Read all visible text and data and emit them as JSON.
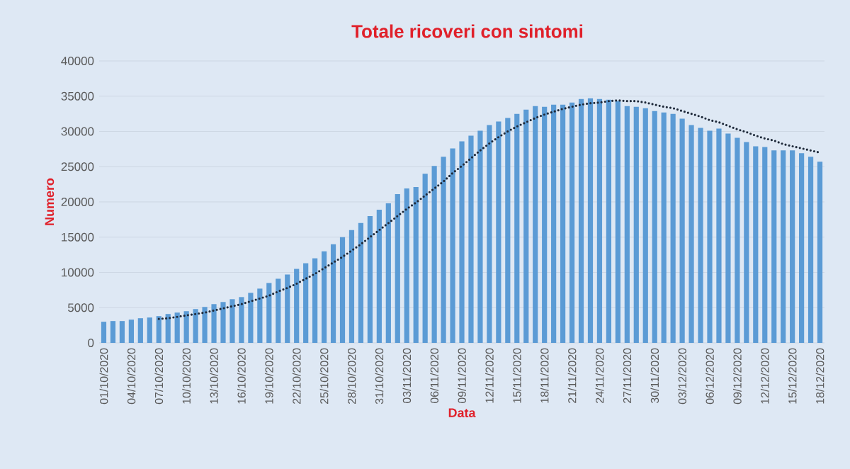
{
  "chart_data": {
    "type": "bar",
    "title": "Totale ricoveri con sintomi",
    "xlabel": "Data",
    "ylabel": "Numero",
    "categories": [
      "01/10/2020",
      null,
      null,
      "04/10/2020",
      null,
      null,
      "07/10/2020",
      null,
      null,
      "10/10/2020",
      null,
      null,
      "13/10/2020",
      null,
      null,
      "16/10/2020",
      null,
      null,
      "19/10/2020",
      null,
      null,
      "22/10/2020",
      null,
      null,
      "25/10/2020",
      null,
      null,
      "28/10/2020",
      null,
      null,
      "31/10/2020",
      null,
      null,
      "03/11/2020",
      null,
      null,
      "06/11/2020",
      null,
      null,
      "09/11/2020",
      null,
      null,
      "12/11/2020",
      null,
      null,
      "15/11/2020",
      null,
      null,
      "18/11/2020",
      null,
      null,
      "21/11/2020",
      null,
      null,
      "24/11/2020",
      null,
      null,
      "27/11/2020",
      null,
      null,
      "30/11/2020",
      null,
      null,
      "03/12/2020",
      null,
      null,
      "06/12/2020",
      null,
      null,
      "09/12/2020",
      null,
      null,
      "12/12/2020",
      null,
      null,
      "15/12/2020",
      null,
      null,
      "18/12/2020"
    ],
    "series": [
      {
        "color": "#5b9bd5",
        "values": [
          3000,
          3100,
          3100,
          3300,
          3500,
          3600,
          3800,
          4100,
          4300,
          4500,
          4800,
          5100,
          5500,
          5800,
          6200,
          6500,
          7100,
          7700,
          8500,
          9100,
          9700,
          10500,
          11300,
          12000,
          13000,
          14000,
          15000,
          16000,
          17000,
          18000,
          18900,
          19800,
          21100,
          21900,
          22100,
          24000,
          25100,
          26400,
          27600,
          28600,
          29400,
          30100,
          30900,
          31400,
          31900,
          32500,
          33100,
          33600,
          33500,
          33800,
          33800,
          34100,
          34600,
          34700,
          34600,
          34500,
          34300,
          33600,
          33500,
          33300,
          32900,
          32700,
          32500,
          31800,
          30900,
          30500,
          30100,
          30400,
          29700,
          29100,
          28500,
          27900,
          27800,
          27300,
          27300,
          27300,
          26900,
          26400,
          25700
        ]
      },
      {
        "type": "line",
        "color": "#1f2a3a",
        "line_style": "dotted",
        "values": [
          null,
          null,
          null,
          null,
          null,
          null,
          3400,
          3500,
          3700,
          3900,
          4100,
          4300,
          4600,
          4900,
          5200,
          5500,
          5900,
          6300,
          6700,
          7300,
          7800,
          8400,
          9100,
          9800,
          10600,
          11400,
          12200,
          13100,
          14000,
          15000,
          16000,
          17000,
          18000,
          19000,
          19900,
          20900,
          21900,
          22900,
          24100,
          25100,
          26200,
          27300,
          28300,
          29200,
          30000,
          30700,
          31300,
          31900,
          32400,
          32800,
          33200,
          33500,
          33800,
          34000,
          34100,
          34300,
          34400,
          34300,
          34300,
          34100,
          33800,
          33500,
          33300,
          32900,
          32500,
          32100,
          31600,
          31300,
          30800,
          30300,
          29900,
          29400,
          29000,
          28700,
          28200,
          27900,
          27600,
          27300,
          27000
        ]
      }
    ],
    "ylim": [
      0,
      40000
    ],
    "yticks": [
      0,
      5000,
      10000,
      15000,
      20000,
      25000,
      30000,
      35000,
      40000
    ],
    "grid": "y"
  }
}
